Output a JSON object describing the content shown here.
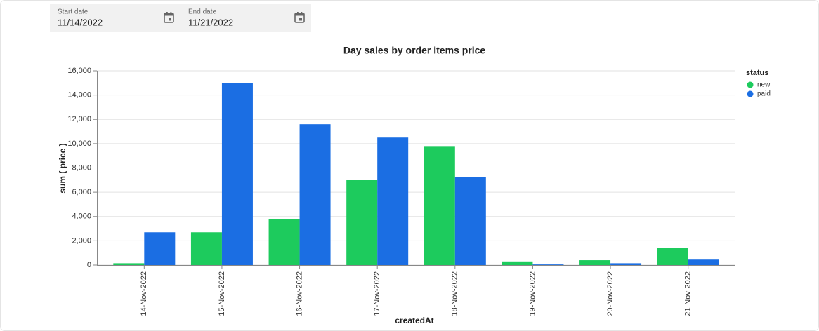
{
  "filters": {
    "start": {
      "label": "Start date",
      "value": "11/14/2022"
    },
    "end": {
      "label": "End date",
      "value": "11/21/2022"
    }
  },
  "chart_data": {
    "type": "bar",
    "title": "Day sales by order items price",
    "x_label": "createdAt",
    "y_label": "sum ( price )",
    "categories": [
      "14-Nov-2022",
      "15-Nov-2022",
      "16-Nov-2022",
      "17-Nov-2022",
      "18-Nov-2022",
      "19-Nov-2022",
      "20-Nov-2022",
      "21-Nov-2022"
    ],
    "series": [
      {
        "name": "new",
        "color": "#1dcb5d",
        "values": [
          150,
          2700,
          3800,
          7000,
          9800,
          300,
          400,
          1400
        ]
      },
      {
        "name": "paid",
        "color": "#1b6ee3",
        "values": [
          2700,
          15000,
          11600,
          10500,
          7250,
          50,
          150,
          450
        ]
      }
    ],
    "legend_title": "status",
    "legend": "right",
    "ylim": [
      0,
      16000
    ],
    "yticks": [
      0,
      {
        "value": 2000,
        "label": "2,000"
      },
      {
        "value": 4000,
        "label": "4,000"
      },
      {
        "value": 6000,
        "label": "6,000"
      },
      {
        "value": 8000,
        "label": "8,000"
      },
      {
        "value": 10000,
        "label": "10,000"
      },
      {
        "value": 12000,
        "label": "12,000"
      },
      {
        "value": 14000,
        "label": "14,000"
      },
      {
        "value": 16000,
        "label": "16,000"
      }
    ],
    "grid": true
  }
}
